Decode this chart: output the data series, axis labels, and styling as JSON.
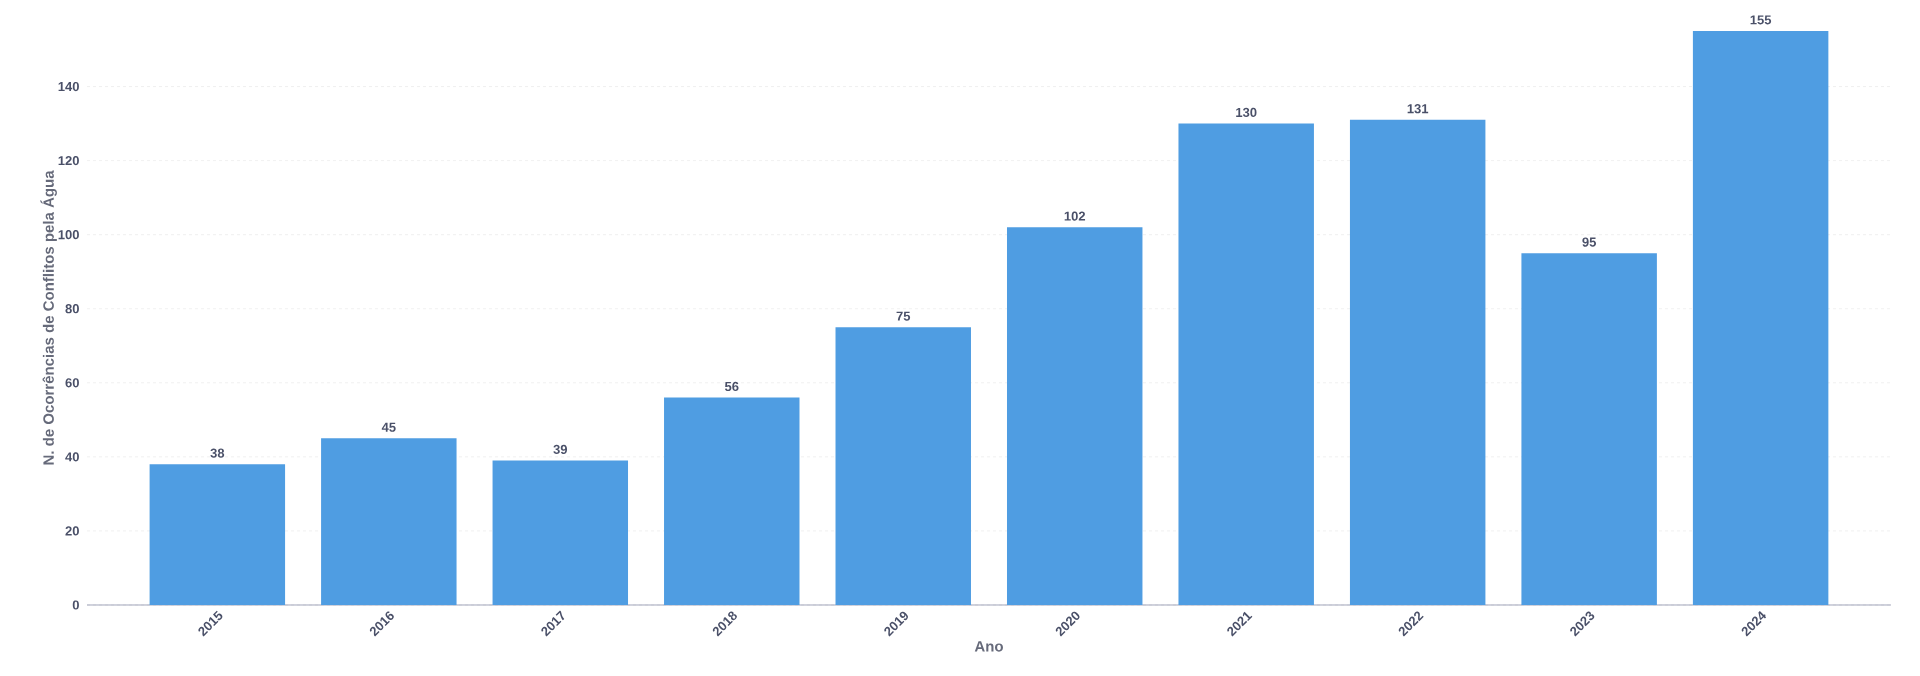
{
  "chart_data": {
    "type": "bar",
    "xlabel": "Ano",
    "ylabel": "N. de Ocorrências de Conflitos pela Água",
    "categories": [
      "2015",
      "2016",
      "2017",
      "2018",
      "2019",
      "2020",
      "2021",
      "2022",
      "2023",
      "2024"
    ],
    "values": [
      38,
      45,
      39,
      56,
      75,
      102,
      130,
      131,
      95,
      155
    ],
    "color": "#4f9de2",
    "ylim": [
      0,
      155
    ],
    "yticks": [
      0,
      20,
      40,
      60,
      80,
      100,
      120,
      140
    ],
    "grid": "y",
    "data_labels": true
  }
}
